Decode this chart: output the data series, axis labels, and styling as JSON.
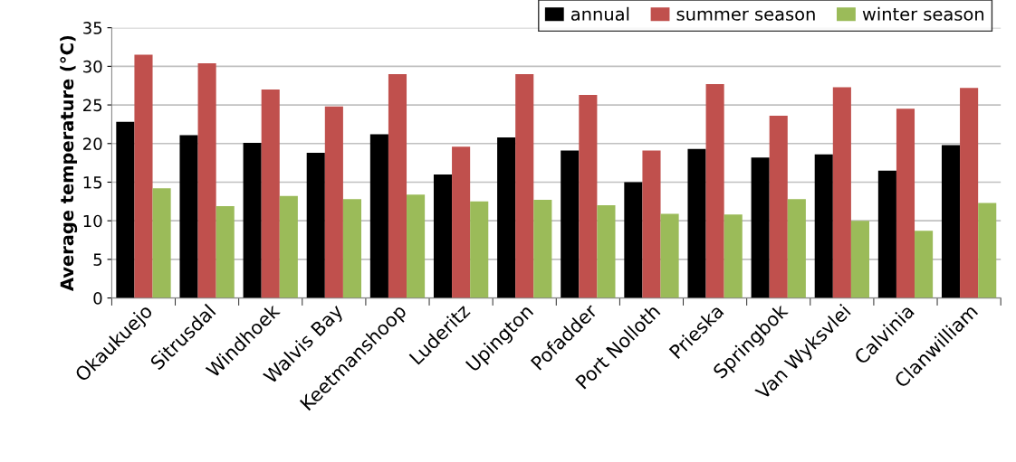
{
  "chart_data": {
    "type": "bar",
    "ylabel": "Average temperature (°C)",
    "categories": [
      "Okaukuejo",
      "Sitrusdal",
      "Windhoek",
      "Walvis Bay",
      "Keetmanshoop",
      "Luderitz",
      "Upington",
      "Pofadder",
      "Port Nolloth",
      "Prieska",
      "Springbok",
      "Van Wyksvlei",
      "Calvinia",
      "Clanwilliam"
    ],
    "series": [
      {
        "name": "annual",
        "color": "#000000",
        "values": [
          22.8,
          21.1,
          20.1,
          18.8,
          21.2,
          16.0,
          20.8,
          19.1,
          15.0,
          19.3,
          18.2,
          18.6,
          16.5,
          19.8
        ]
      },
      {
        "name": "summer season",
        "color": "#c0504d",
        "values": [
          31.5,
          30.4,
          27.0,
          24.8,
          29.0,
          19.6,
          29.0,
          26.3,
          19.1,
          27.7,
          23.6,
          27.3,
          24.5,
          27.2
        ]
      },
      {
        "name": "winter season",
        "color": "#9bbb59",
        "values": [
          14.2,
          11.9,
          13.2,
          12.8,
          13.4,
          12.5,
          12.7,
          12.0,
          10.9,
          10.8,
          12.8,
          10.0,
          8.7,
          12.3
        ]
      }
    ],
    "ylim": [
      0,
      35
    ],
    "yticks": [
      0,
      5,
      10,
      15,
      20,
      25,
      30,
      35
    ],
    "grid": "y",
    "legend": "top right"
  }
}
